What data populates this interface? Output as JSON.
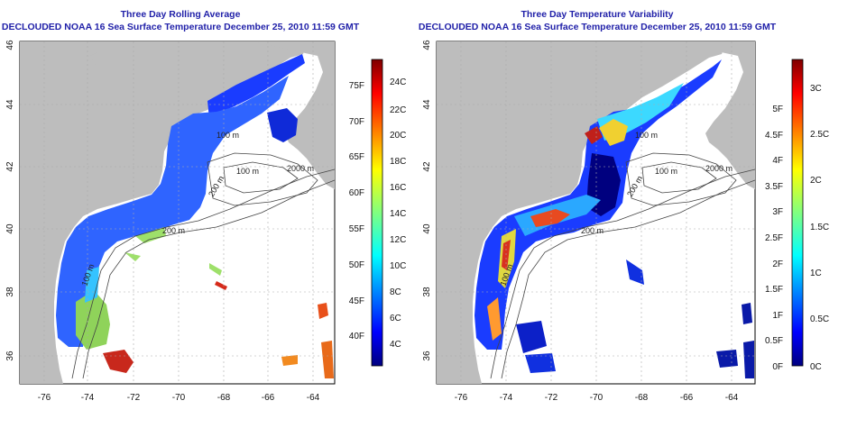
{
  "panels": [
    {
      "title_line1": "Three Day Rolling Average",
      "title_line2": "DECLOUDED NOAA 16 Sea Surface Temperature December 25, 2010 11:59 GMT",
      "x_ticks": [
        "-76",
        "-74",
        "-72",
        "-70",
        "-68",
        "-66",
        "-64"
      ],
      "y_ticks": [
        "36",
        "38",
        "40",
        "42",
        "44",
        "46"
      ],
      "contour_labels": [
        "100 m",
        "2000 m",
        "200 m",
        "100 m",
        "200 m",
        "100 m"
      ],
      "colorbar": {
        "ticks_c": [
          "24C",
          "22C",
          "20C",
          "18C",
          "16C",
          "14C",
          "12C",
          "10C",
          "8C",
          "6C",
          "4C"
        ],
        "ticks_f": [
          "75F",
          "70F",
          "65F",
          "60F",
          "55F",
          "50F",
          "45F",
          "40F"
        ]
      }
    },
    {
      "title_line1": "Three Day Temperature Variability",
      "title_line2": "DECLOUDED NOAA 16 Sea Surface Temperature December 25, 2010 11:59 GMT",
      "x_ticks": [
        "-76",
        "-74",
        "-72",
        "-70",
        "-68",
        "-66",
        "-64"
      ],
      "y_ticks": [
        "36",
        "38",
        "40",
        "42",
        "44",
        "46"
      ],
      "contour_labels": [
        "100 m",
        "2000 m",
        "200 m",
        "100 m",
        "200 m",
        "100 m"
      ],
      "colorbar": {
        "ticks_c": [
          "3C",
          "2.5C",
          "2C",
          "1.5C",
          "1C",
          "0.5C",
          "0C"
        ],
        "ticks_f": [
          "5F",
          "4.5F",
          "4F",
          "3.5F",
          "3F",
          "2.5F",
          "2F",
          "1.5F",
          "1F",
          "0.5F",
          "0F"
        ]
      }
    }
  ],
  "colors": {
    "title": "#1f1fa8",
    "land": "#bdbdbd",
    "ocean_missing": "#ffffff",
    "colormap": [
      "#00007f",
      "#0000ff",
      "#0080ff",
      "#00ffff",
      "#80ff80",
      "#ffff00",
      "#ff8000",
      "#ff0000",
      "#7f0000"
    ]
  }
}
